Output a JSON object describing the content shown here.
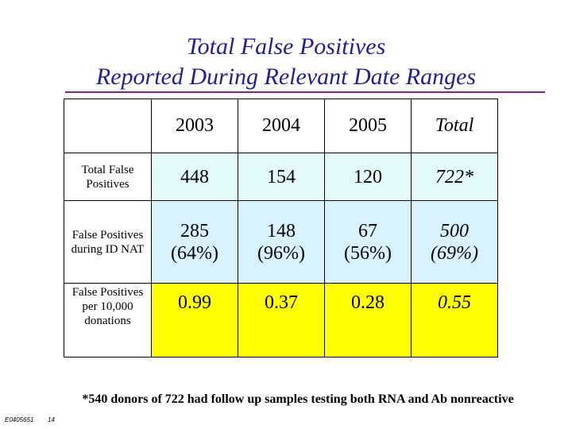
{
  "title": {
    "line1": "Total False Positives",
    "line2": "Reported During Relevant Date Ranges"
  },
  "table": {
    "headers": [
      "2003",
      "2004",
      "2005",
      "Total"
    ],
    "rows": [
      {
        "label": "Total False Positives",
        "cells": [
          {
            "line1": "448",
            "line2": ""
          },
          {
            "line1": "154",
            "line2": ""
          },
          {
            "line1": "120",
            "line2": ""
          },
          {
            "line1": "722*",
            "line2": ""
          }
        ]
      },
      {
        "label": "False Positives during ID NAT",
        "cells": [
          {
            "line1": "285",
            "line2": "(64%)"
          },
          {
            "line1": "148",
            "line2": "(96%)"
          },
          {
            "line1": "67",
            "line2": "(56%)"
          },
          {
            "line1": "500",
            "line2": "(69%)"
          }
        ]
      },
      {
        "label": "False Positives per 10,000 donations",
        "cells": [
          {
            "line1": "0.99",
            "line2": ""
          },
          {
            "line1": "0.37",
            "line2": ""
          },
          {
            "line1": "0.28",
            "line2": ""
          },
          {
            "line1": "0.55",
            "line2": ""
          }
        ]
      }
    ]
  },
  "footnote": "*540 donors of 722 had follow up samples testing both RNA and Ab nonreactive",
  "footer": {
    "doc_id": "E0405651",
    "page_number": "14"
  },
  "colors": {
    "title": "#1f1f9e",
    "rule": "#8b1a8b",
    "row1_fill": "#e2fafa",
    "row2_fill": "#d9f2ff",
    "row3_fill": "#ffff00"
  }
}
